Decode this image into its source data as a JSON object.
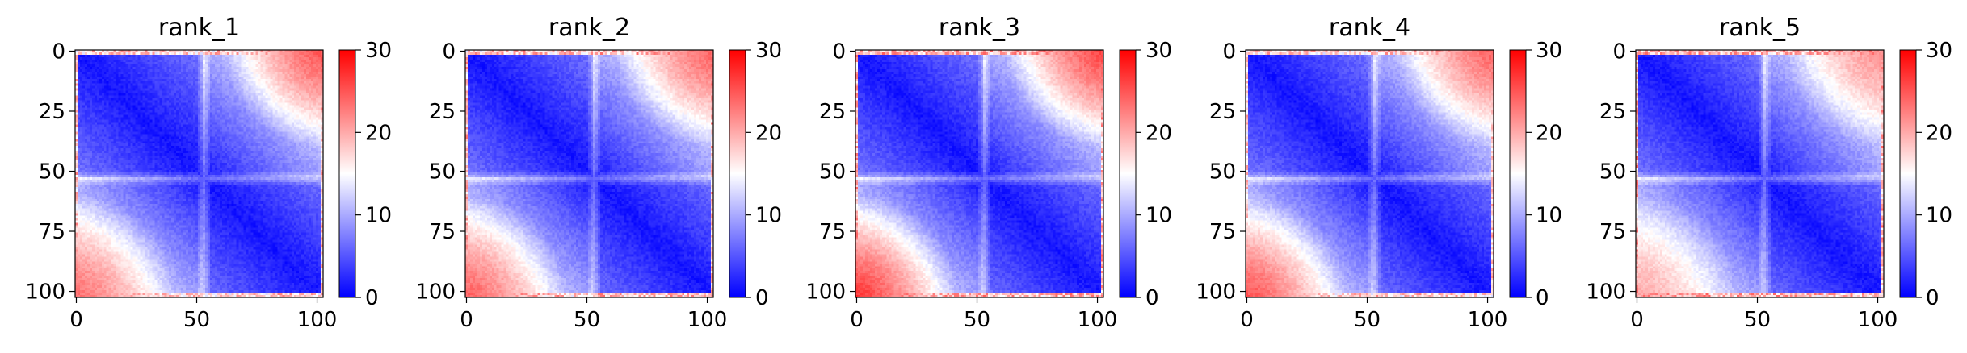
{
  "chart_data": [
    {
      "type": "heatmap",
      "title": "rank_1",
      "colormap": "bwr",
      "clim": [
        0,
        30
      ],
      "xticks": [
        "0",
        "50",
        "100"
      ],
      "yticks": [
        "0",
        "25",
        "50",
        "75",
        "100"
      ],
      "colorbar_ticks": [
        "0",
        "10",
        "20",
        "30"
      ],
      "matrix_size": 103,
      "domain_boundary": 53,
      "max_corner_values": {
        "top_right": 26,
        "bottom_left": 24,
        "edges": 22
      }
    },
    {
      "type": "heatmap",
      "title": "rank_2",
      "colormap": "bwr",
      "clim": [
        0,
        30
      ],
      "xticks": [
        "0",
        "50",
        "100"
      ],
      "yticks": [
        "0",
        "25",
        "50",
        "75",
        "100"
      ],
      "colorbar_ticks": [
        "0",
        "10",
        "20",
        "30"
      ],
      "matrix_size": 103,
      "domain_boundary": 53,
      "max_corner_values": {
        "top_right": 25,
        "bottom_left": 25,
        "edges": 23
      }
    },
    {
      "type": "heatmap",
      "title": "rank_3",
      "colormap": "bwr",
      "clim": [
        0,
        30
      ],
      "xticks": [
        "0",
        "50",
        "100"
      ],
      "yticks": [
        "0",
        "25",
        "50",
        "75",
        "100"
      ],
      "colorbar_ticks": [
        "0",
        "10",
        "20",
        "30"
      ],
      "matrix_size": 103,
      "domain_boundary": 53,
      "max_corner_values": {
        "top_right": 27,
        "bottom_left": 28,
        "edges": 24
      }
    },
    {
      "type": "heatmap",
      "title": "rank_4",
      "colormap": "bwr",
      "clim": [
        0,
        30
      ],
      "xticks": [
        "0",
        "50",
        "100"
      ],
      "yticks": [
        "0",
        "25",
        "50",
        "75",
        "100"
      ],
      "colorbar_ticks": [
        "0",
        "10",
        "20",
        "30"
      ],
      "matrix_size": 103,
      "domain_boundary": 53,
      "max_corner_values": {
        "top_right": 25,
        "bottom_left": 26,
        "edges": 22
      }
    },
    {
      "type": "heatmap",
      "title": "rank_5",
      "colormap": "bwr",
      "clim": [
        0,
        30
      ],
      "xticks": [
        "0",
        "50",
        "100"
      ],
      "yticks": [
        "0",
        "25",
        "50",
        "75",
        "100"
      ],
      "colorbar_ticks": [
        "0",
        "10",
        "20",
        "30"
      ],
      "matrix_size": 103,
      "domain_boundary": 53,
      "max_corner_values": {
        "top_right": 22,
        "bottom_left": 20,
        "edges": 24
      }
    }
  ]
}
